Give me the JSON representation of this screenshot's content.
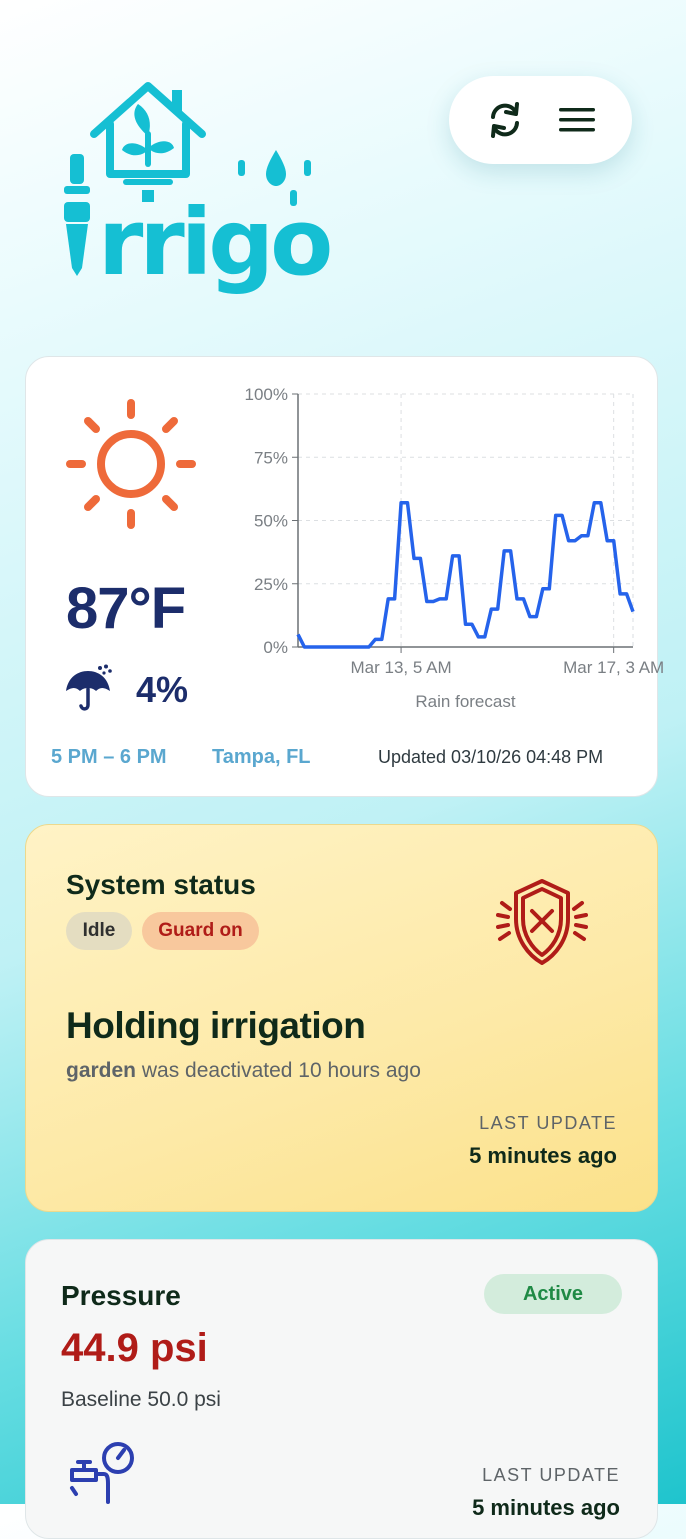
{
  "brand": {
    "name": "rrigo",
    "logo": "irrigo-logo",
    "color": "#15bfd3"
  },
  "header": {
    "refresh_icon": "refresh-icon",
    "menu_icon": "hamburger-menu-icon"
  },
  "weather": {
    "icon": "sun-icon",
    "temperature": "87°F",
    "rain_icon": "umbrella-rain-icon",
    "rain_chance": "4%",
    "time_range": "5 PM – 6 PM",
    "location": "Tampa, FL",
    "updated": "Updated 03/10/26 04:48 PM"
  },
  "chart_data": {
    "type": "line",
    "title": "",
    "xlabel": "Rain forecast",
    "ylabel": "",
    "yticks": [
      "0%",
      "25%",
      "50%",
      "75%",
      "100%"
    ],
    "ylim": [
      0,
      100
    ],
    "xticks": [
      "Mar 13, 5 AM",
      "Mar 17, 3 AM"
    ],
    "grid": true,
    "color": "#2563eb",
    "series": [
      {
        "values": [
          5,
          0,
          0,
          0,
          0,
          0,
          0,
          0,
          0,
          0,
          0,
          0,
          3,
          3,
          19,
          19,
          57,
          57,
          35,
          35,
          18,
          18,
          19,
          19,
          36,
          36,
          9,
          9,
          4,
          4,
          15,
          15,
          38,
          38,
          19,
          19,
          12,
          12,
          23,
          23,
          52,
          52,
          42,
          42,
          44,
          44,
          57,
          57,
          42,
          42,
          21,
          21,
          14
        ]
      }
    ]
  },
  "status": {
    "title": "System status",
    "pill_idle": "Idle",
    "pill_guard": "Guard on",
    "shield_icon": "shield-x-icon",
    "headline": "Holding irrigation",
    "zone": "garden",
    "detail": "was deactivated 10 hours ago",
    "last_update_label": "LAST UPDATE",
    "last_update_value": "5 minutes ago",
    "accent": "#b01c18"
  },
  "pressure": {
    "title": "Pressure",
    "badge": "Active",
    "value": "44.9 psi",
    "baseline": "Baseline 50.0 psi",
    "icon": "faucet-gauge-icon",
    "last_update_label": "LAST UPDATE",
    "last_update_value": "5 minutes ago"
  }
}
